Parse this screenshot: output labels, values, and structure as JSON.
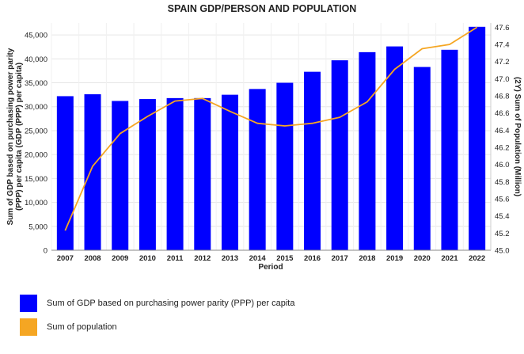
{
  "chart_data": {
    "type": "bar+line",
    "title": "SPAIN GDP/PERSON AND POPULATION",
    "xlabel": "Period",
    "ylabel": "Sum of GDP based on purchasing power parity (PPP) per capita (GDP (PPP) per capita)",
    "y2label": "(2Y) Sum of Population (Million)",
    "categories": [
      "2007",
      "2008",
      "2009",
      "2010",
      "2011",
      "2012",
      "2013",
      "2014",
      "2015",
      "2016",
      "2017",
      "2018",
      "2019",
      "2020",
      "2021",
      "2022"
    ],
    "ylim": [
      0,
      47500
    ],
    "yticks": [
      0,
      5000,
      10000,
      15000,
      20000,
      25000,
      30000,
      35000,
      40000,
      45000
    ],
    "ytick_labels": [
      "0",
      "5,000",
      "10,000",
      "15,000",
      "20,000",
      "25,000",
      "30,000",
      "35,000",
      "40,000",
      "45,000"
    ],
    "y2lim": [
      45.0,
      47.65
    ],
    "y2ticks": [
      45.0,
      45.2,
      45.4,
      45.6,
      45.8,
      46.0,
      46.2,
      46.4,
      46.6,
      46.8,
      47.0,
      47.2,
      47.4,
      47.6
    ],
    "y2tick_labels": [
      "45.0",
      "45.2",
      "45.4",
      "45.6",
      "45.8",
      "46.0",
      "46.2",
      "46.4",
      "46.6",
      "46.8",
      "47.0",
      "47.2",
      "47.4",
      "47.6"
    ],
    "grid": true,
    "legend_position": "bottom",
    "series": [
      {
        "name": "Sum of GDP based on purchasing power parity (PPP) per capita",
        "type": "bar",
        "axis": "left",
        "color": "#0000ff",
        "values": [
          32200,
          32600,
          31200,
          31600,
          31800,
          31800,
          32500,
          33700,
          35000,
          37300,
          39700,
          41400,
          42600,
          38300,
          41900,
          46700
        ]
      },
      {
        "name": "Sum of population",
        "type": "line",
        "axis": "right",
        "color": "#f5a623",
        "values": [
          45.23,
          45.98,
          46.36,
          46.56,
          46.74,
          46.77,
          46.62,
          46.48,
          46.45,
          46.48,
          46.55,
          46.73,
          47.11,
          47.35,
          47.4,
          47.6
        ]
      }
    ]
  }
}
